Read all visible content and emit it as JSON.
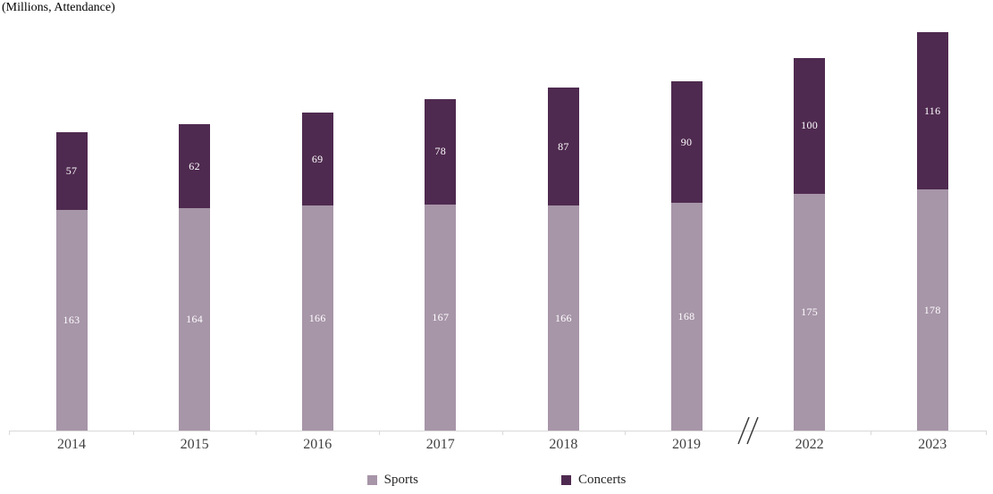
{
  "title": "(Millions, Attendance)",
  "legend": {
    "items": [
      {
        "label": "Sports",
        "color": "#A795A8"
      },
      {
        "label": "Concerts",
        "color": "#4F2A50"
      }
    ]
  },
  "chart_data": {
    "type": "bar",
    "stacked": true,
    "title": "(Millions, Attendance)",
    "xlabel": "",
    "ylabel": "",
    "categories": [
      "2014",
      "2015",
      "2016",
      "2017",
      "2018",
      "2019",
      "2022",
      "2023"
    ],
    "series": [
      {
        "name": "Sports",
        "color": "#A795A8",
        "values": [
          163,
          164,
          166,
          167,
          166,
          168,
          175,
          178
        ]
      },
      {
        "name": "Concerts",
        "color": "#4F2A50",
        "values": [
          57,
          62,
          69,
          78,
          87,
          90,
          100,
          116
        ]
      }
    ],
    "value_labels": "inside",
    "value_label_color": "#FFFFFF",
    "axis_break_between": [
      "2019",
      "2022"
    ],
    "axis_line_color": "#D9D9D9",
    "tick_label_color": "#404040",
    "grid": false,
    "legend_position": "bottom"
  }
}
